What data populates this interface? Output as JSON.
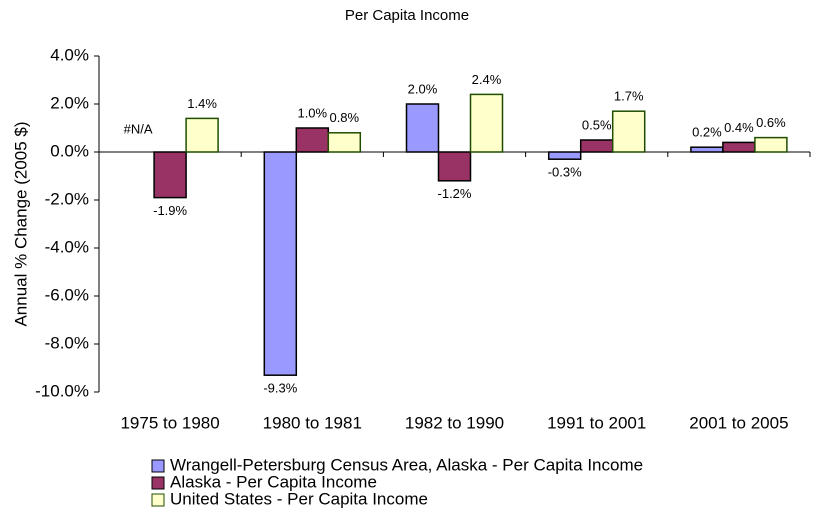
{
  "chart_data": {
    "type": "bar",
    "title": "Per Capita Income",
    "y_label": "Annual % Change (2005 $)",
    "categories": [
      "1975 to 1980",
      "1980 to 1981",
      "1982 to 1990",
      "1991 to 2001",
      "2001 to 2005"
    ],
    "series": [
      {
        "name": "Wrangell-Petersburg Census Area, Alaska - Per Capita Income",
        "color": "#9999ff",
        "values": [
          null,
          -9.3,
          2.0,
          -0.3,
          0.2
        ],
        "value_labels": [
          "#N/A",
          "-9.3%",
          "2.0%",
          "-0.3%",
          "0.2%"
        ]
      },
      {
        "name": "Alaska - Per Capita Income",
        "color": "#993366",
        "values": [
          -1.9,
          1.0,
          -1.2,
          0.5,
          0.4
        ],
        "value_labels": [
          "-1.9%",
          "1.0%",
          "-1.2%",
          "0.5%",
          "0.4%"
        ]
      },
      {
        "name": "United States - Per Capita Income",
        "color": "#ffffcc",
        "values": [
          1.4,
          0.8,
          2.4,
          1.7,
          0.6
        ],
        "value_labels": [
          "1.4%",
          "0.8%",
          "2.4%",
          "1.7%",
          "0.6%"
        ]
      }
    ],
    "ylim": [
      -10,
      4
    ],
    "yticks": [
      {
        "value": -10,
        "label": "-10.0%"
      },
      {
        "value": -8,
        "label": "-8.0%"
      },
      {
        "value": -6,
        "label": "-6.0%"
      },
      {
        "value": -4,
        "label": "-4.0%"
      },
      {
        "value": -2,
        "label": "-2.0%"
      },
      {
        "value": 0,
        "label": "0.0%"
      },
      {
        "value": 2,
        "label": "2.0%"
      },
      {
        "value": 4,
        "label": "4.0%"
      }
    ],
    "grid": false,
    "legend": "bottom"
  }
}
